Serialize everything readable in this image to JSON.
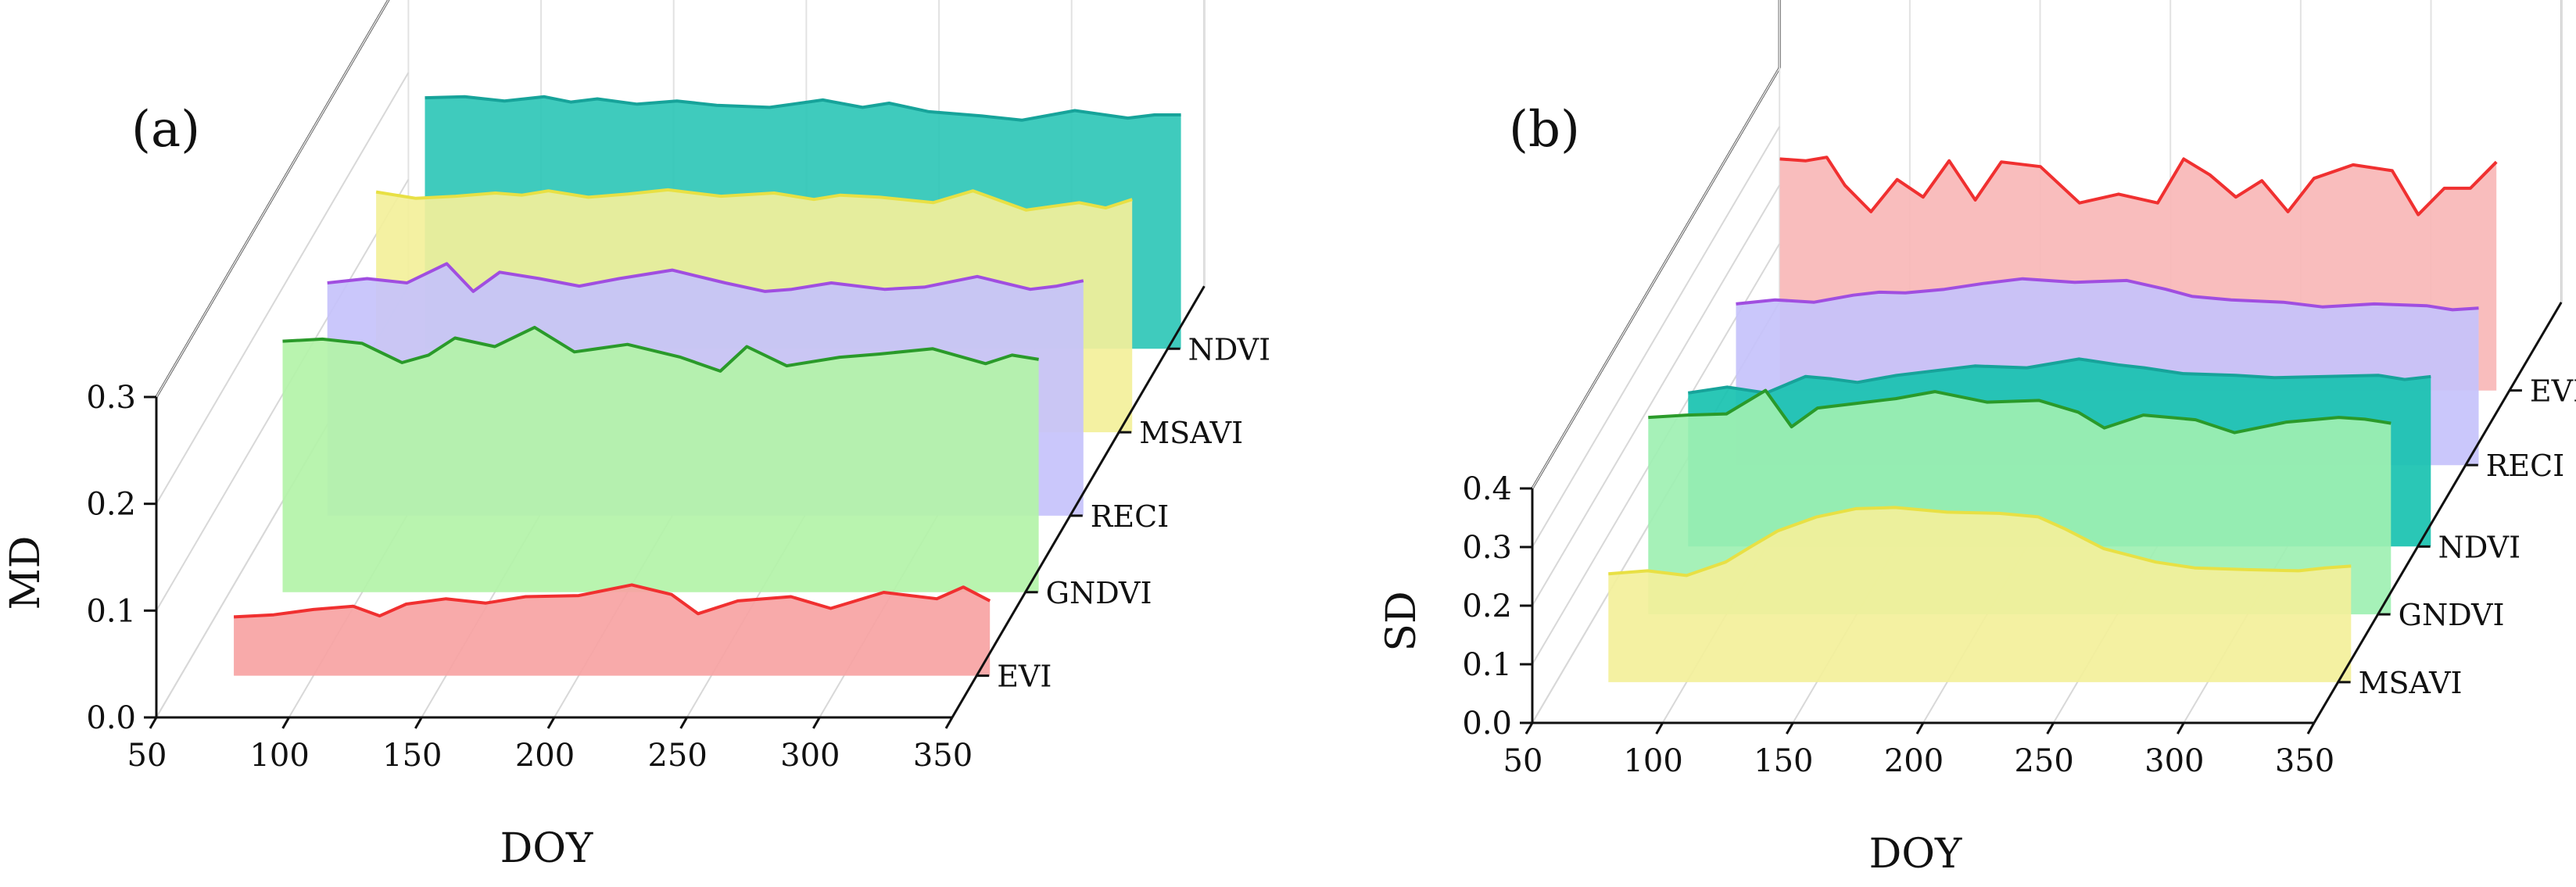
{
  "chart_data": [
    {
      "type": "area",
      "panel_label": "(a)",
      "xlabel": "DOY",
      "ylabel": "MD",
      "xlim": [
        50,
        350
      ],
      "ylim": [
        0,
        0.3
      ],
      "xticks": [
        "50",
        "100",
        "150",
        "200",
        "250",
        "300",
        "350"
      ],
      "yticks": [
        "0.0",
        "0.1",
        "0.2",
        "0.3"
      ],
      "series": [
        {
          "name": "EVI",
          "color": "#f03030",
          "fill": "#f7a3a3",
          "x": [
            70,
            85,
            100,
            115,
            125,
            135,
            150,
            165,
            180,
            200,
            220,
            235,
            245,
            260,
            280,
            295,
            315,
            335,
            345,
            355
          ],
          "values": [
            0.055,
            0.057,
            0.062,
            0.065,
            0.056,
            0.067,
            0.072,
            0.068,
            0.074,
            0.075,
            0.085,
            0.076,
            0.058,
            0.07,
            0.074,
            0.063,
            0.078,
            0.072,
            0.083,
            0.07
          ]
        },
        {
          "name": "GNDVI",
          "color": "#2a9a2a",
          "fill": "#b3f3a8",
          "x": [
            70,
            85,
            100,
            115,
            125,
            135,
            150,
            165,
            180,
            200,
            220,
            235,
            245,
            260,
            280,
            295,
            315,
            335,
            345,
            355
          ],
          "values": [
            0.235,
            0.237,
            0.233,
            0.215,
            0.222,
            0.238,
            0.23,
            0.248,
            0.225,
            0.232,
            0.22,
            0.207,
            0.23,
            0.212,
            0.22,
            0.223,
            0.228,
            0.214,
            0.222,
            0.218
          ]
        },
        {
          "name": "RECI",
          "color": "#a04ee0",
          "fill": "#c6c2fb",
          "x": [
            70,
            85,
            100,
            115,
            125,
            135,
            150,
            165,
            180,
            200,
            220,
            235,
            245,
            260,
            280,
            295,
            315,
            335,
            345,
            355
          ],
          "values": [
            0.218,
            0.222,
            0.218,
            0.236,
            0.21,
            0.228,
            0.222,
            0.215,
            0.222,
            0.23,
            0.218,
            0.21,
            0.212,
            0.218,
            0.212,
            0.214,
            0.224,
            0.212,
            0.215,
            0.22
          ]
        },
        {
          "name": "MSAVI",
          "color": "#e8e044",
          "fill": "#f3f09a",
          "x": [
            70,
            85,
            100,
            115,
            125,
            135,
            150,
            165,
            180,
            200,
            220,
            235,
            245,
            260,
            280,
            295,
            315,
            335,
            345,
            355
          ],
          "values": [
            0.225,
            0.219,
            0.221,
            0.224,
            0.222,
            0.226,
            0.22,
            0.223,
            0.227,
            0.221,
            0.224,
            0.218,
            0.222,
            0.22,
            0.215,
            0.226,
            0.208,
            0.215,
            0.21,
            0.218
          ]
        },
        {
          "name": "NDVI",
          "color": "#17a39a",
          "fill": "#2fc7b7",
          "x": [
            70,
            85,
            100,
            115,
            125,
            135,
            150,
            165,
            180,
            200,
            220,
            235,
            245,
            260,
            280,
            295,
            315,
            335,
            345,
            355
          ],
          "values": [
            0.235,
            0.236,
            0.232,
            0.236,
            0.231,
            0.234,
            0.229,
            0.232,
            0.228,
            0.226,
            0.233,
            0.226,
            0.23,
            0.222,
            0.218,
            0.214,
            0.223,
            0.216,
            0.219,
            0.219
          ]
        }
      ]
    },
    {
      "type": "area",
      "panel_label": "(b)",
      "xlabel": "DOY",
      "ylabel": "SD",
      "xlim": [
        50,
        350
      ],
      "ylim": [
        0,
        0.4
      ],
      "xticks": [
        "50",
        "100",
        "150",
        "200",
        "250",
        "300",
        "350"
      ],
      "yticks": [
        "0.0",
        "0.1",
        "0.2",
        "0.3",
        "0.4"
      ],
      "series": [
        {
          "name": "MSAVI",
          "color": "#e8e044",
          "fill": "#f3f09a",
          "x": [
            70,
            85,
            100,
            115,
            125,
            135,
            150,
            165,
            180,
            200,
            220,
            235,
            245,
            260,
            280,
            295,
            315,
            335,
            345,
            355
          ],
          "values": [
            0.185,
            0.19,
            0.182,
            0.205,
            0.232,
            0.258,
            0.282,
            0.296,
            0.298,
            0.29,
            0.288,
            0.282,
            0.262,
            0.228,
            0.205,
            0.195,
            0.192,
            0.19,
            0.195,
            0.198
          ]
        },
        {
          "name": "GNDVI",
          "color": "#2a9a2a",
          "fill": "#9ef0b2",
          "x": [
            70,
            85,
            100,
            115,
            125,
            135,
            150,
            165,
            180,
            200,
            220,
            235,
            245,
            260,
            280,
            295,
            315,
            335,
            345,
            355
          ],
          "values": [
            0.336,
            0.34,
            0.342,
            0.382,
            0.32,
            0.352,
            0.36,
            0.368,
            0.38,
            0.362,
            0.365,
            0.345,
            0.318,
            0.34,
            0.332,
            0.31,
            0.328,
            0.336,
            0.333,
            0.326
          ]
        },
        {
          "name": "NDVI",
          "color": "#17a39a",
          "fill": "#18c2b0",
          "x": [
            70,
            85,
            100,
            115,
            125,
            135,
            150,
            165,
            180,
            200,
            220,
            235,
            245,
            260,
            280,
            295,
            315,
            335,
            345,
            355
          ],
          "values": [
            0.262,
            0.272,
            0.262,
            0.29,
            0.286,
            0.28,
            0.292,
            0.3,
            0.308,
            0.305,
            0.32,
            0.31,
            0.305,
            0.295,
            0.292,
            0.288,
            0.29,
            0.292,
            0.285,
            0.29
          ]
        },
        {
          "name": "RECI",
          "color": "#a04ee0",
          "fill": "#c6c2fb",
          "x": [
            70,
            85,
            100,
            115,
            125,
            135,
            150,
            165,
            180,
            200,
            220,
            235,
            245,
            260,
            280,
            295,
            315,
            335,
            345,
            355
          ],
          "values": [
            0.275,
            0.282,
            0.278,
            0.29,
            0.295,
            0.294,
            0.3,
            0.31,
            0.318,
            0.312,
            0.315,
            0.3,
            0.288,
            0.282,
            0.278,
            0.27,
            0.275,
            0.272,
            0.265,
            0.268
          ]
        },
        {
          "name": "EVI",
          "color": "#f03030",
          "fill": "#f8b7b7",
          "x": [
            70,
            80,
            88,
            95,
            105,
            115,
            125,
            135,
            145,
            155,
            170,
            185,
            200,
            215,
            225,
            235,
            245,
            255,
            265,
            275,
            290,
            305,
            315,
            325,
            335,
            345
          ],
          "values": [
            0.395,
            0.392,
            0.398,
            0.35,
            0.305,
            0.36,
            0.33,
            0.392,
            0.325,
            0.39,
            0.382,
            0.32,
            0.335,
            0.32,
            0.395,
            0.368,
            0.33,
            0.358,
            0.305,
            0.362,
            0.385,
            0.375,
            0.3,
            0.345,
            0.345,
            0.39
          ]
        }
      ]
    }
  ]
}
